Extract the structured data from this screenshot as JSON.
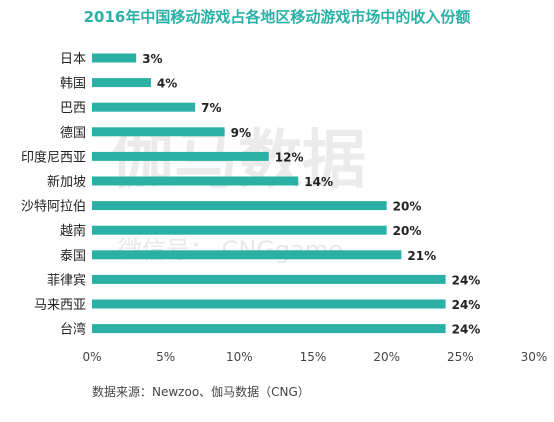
{
  "chart_data": {
    "type": "bar",
    "orientation": "horizontal",
    "title": "2016年中国移动游戏占各地区移动游戏市场中的收入份额",
    "categories": [
      "日本",
      "韩国",
      "巴西",
      "德国",
      "印度尼西亚",
      "新加坡",
      "沙特阿拉伯",
      "越南",
      "泰国",
      "菲律宾",
      "马来西亚",
      "台湾"
    ],
    "values": [
      3,
      4,
      7,
      9,
      12,
      14,
      20,
      20,
      21,
      24,
      24,
      24
    ],
    "value_labels": [
      "3%",
      "4%",
      "7%",
      "9%",
      "12%",
      "14%",
      "20%",
      "20%",
      "21%",
      "24%",
      "24%",
      "24%"
    ],
    "x_ticks": [
      "0%",
      "5%",
      "10%",
      "15%",
      "20%",
      "25%",
      "30%"
    ],
    "xlim": [
      0,
      30
    ],
    "bar_color": "#2bb0a6",
    "title_color": "#2bb0a6",
    "grid": false,
    "legend": "none",
    "source": "数据来源：Newzoo、伽马数据（CNG）"
  },
  "watermark": {
    "main": "伽马数据",
    "sub": "微信号： CNGgame"
  }
}
